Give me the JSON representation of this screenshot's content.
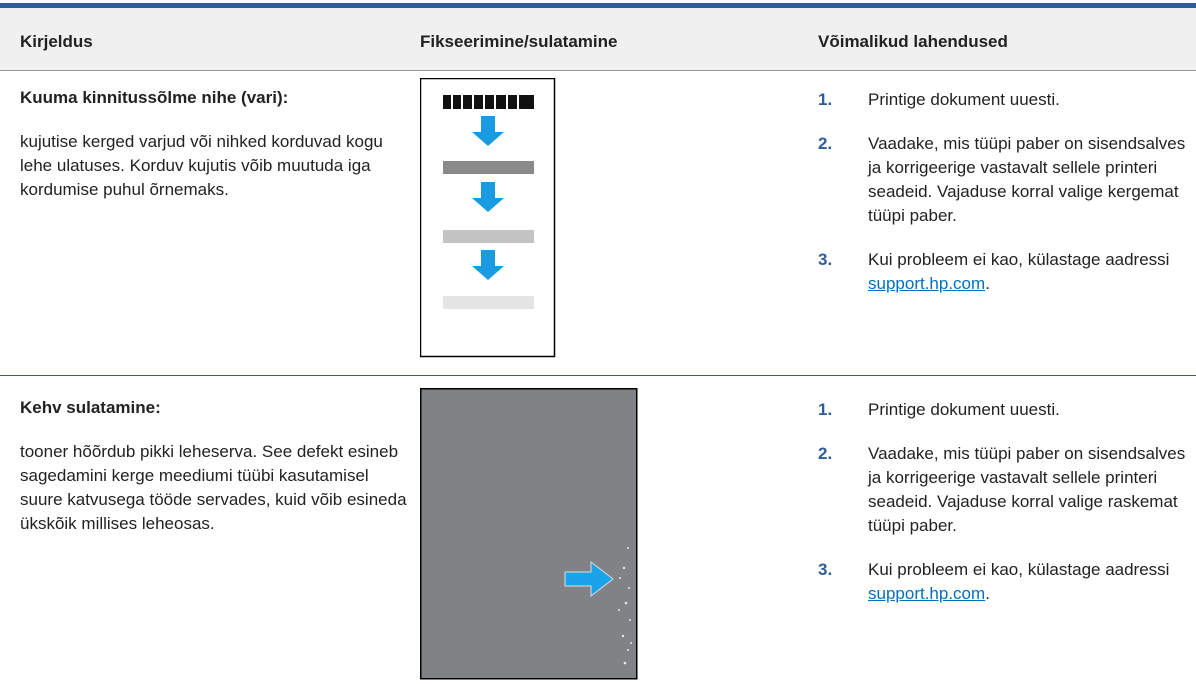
{
  "table": {
    "header": [
      "Kirjeldus",
      "Fikseerimine/sulatamine",
      "Võimalikud lahendused"
    ],
    "rows": [
      {
        "title": "Kuuma kinnitussõlme nihe (vari):",
        "text": "kujutise kerged varjud või nihked korduvad kogu lehe ulatuses. Korduv kujutis võib muutuda iga kordumise puhul õrnemaks.",
        "solutions": [
          {
            "number": "1.",
            "text": "Printige dokument uuesti."
          },
          {
            "number": "2.",
            "text": "Vaadake, mis tüüpi paber on sisendsalves ja korrigeerige vastavalt sellele printeri seadeid. Vajaduse korral valige kergemat tüüpi paber."
          },
          {
            "number": "3.",
            "text": "Kui probleem ei kao, külastage aadressi",
            "link": "support.hp.com",
            "after": "."
          }
        ]
      },
      {
        "title": "Kehv sulatamine:",
        "text": "tooner hõõrdub pikki leheserva. See defekt esineb sagedamini kerge meediumi tüübi kasutamisel suure katvusega tööde servades, kuid võib esineda ükskõik millises leheosas.",
        "solutions": [
          {
            "number": "1.",
            "text": "Printige dokument uuesti."
          },
          {
            "number": "2.",
            "text": "Vaadake, mis tüüpi paber on sisendsalves ja korrigeerige vastavalt sellele printeri seadeid. Vajaduse korral valige raskemat tüüpi paber."
          },
          {
            "number": "3.",
            "text": "Kui probleem ei kao, külastage aadressi",
            "link": "support.hp.com",
            "after": "."
          }
        ]
      }
    ]
  }
}
